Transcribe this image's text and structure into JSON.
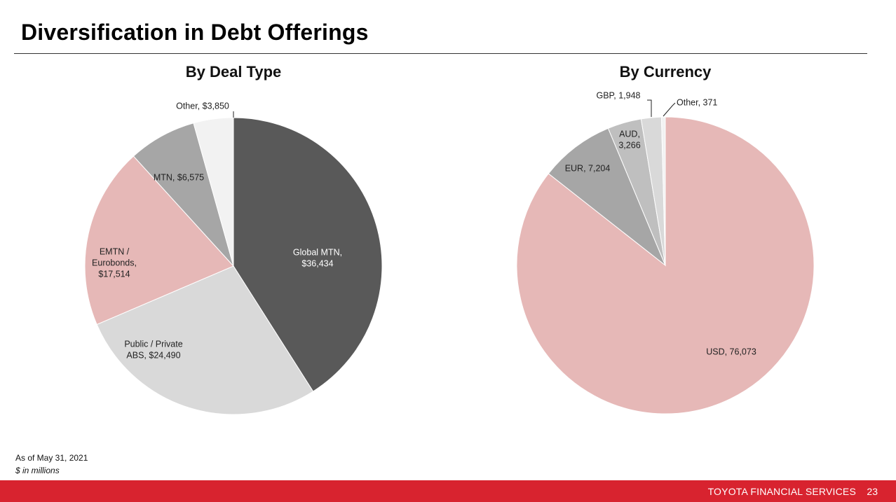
{
  "page": {
    "title": "Diversification in Debt Offerings",
    "footnote_date": "As of May 31, 2021",
    "footnote_units": "$ in millions",
    "footer_brand": "TOYOTA FINANCIAL SERVICES",
    "page_number": "23"
  },
  "colors": {
    "accent": "#d8232f",
    "global_mtn": "#595959",
    "public_private_abs": "#d9d9d9",
    "emtn": "#e6b8b7",
    "mtn": "#a6a6a6",
    "other_light": "#f2f2f2",
    "usd": "#e6b8b7",
    "eur": "#a6a6a6",
    "aud": "#bfbfbf",
    "gbp": "#d9d9d9"
  },
  "chart_data": [
    {
      "type": "pie",
      "title": "By Deal Type",
      "categories": [
        "Global MTN",
        "Public / Private ABS",
        "EMTN / Eurobonds",
        "MTN",
        "Other"
      ],
      "values": [
        36434,
        24490,
        17514,
        6575,
        3850
      ],
      "labels": [
        [
          "Global MTN,",
          "$36,434"
        ],
        [
          "Public / Private",
          "ABS,  $24,490"
        ],
        [
          "EMTN /",
          "Eurobonds,",
          "$17,514"
        ],
        [
          "MTN,  $6,575"
        ],
        [
          "Other,  $3,850"
        ]
      ],
      "colors": [
        "#595959",
        "#d9d9d9",
        "#e6b8b7",
        "#a6a6a6",
        "#f2f2f2"
      ],
      "label_colors": [
        "#ffffff",
        "#222222",
        "#222222",
        "#222222",
        "#222222"
      ],
      "start": "12 o'clock",
      "direction": "clockwise"
    },
    {
      "type": "pie",
      "title": "By Currency",
      "categories": [
        "USD",
        "EUR",
        "AUD",
        "GBP",
        "Other"
      ],
      "values": [
        76073,
        7204,
        3266,
        1948,
        371
      ],
      "labels": [
        [
          "USD,  76,073"
        ],
        [
          "EUR,  7,204"
        ],
        [
          "AUD,",
          "3,266"
        ],
        [
          "GBP,  1,948"
        ],
        [
          "Other,  371"
        ]
      ],
      "colors": [
        "#e6b8b7",
        "#a6a6a6",
        "#bfbfbf",
        "#d9d9d9",
        "#f2f2f2"
      ],
      "label_colors": [
        "#222222",
        "#222222",
        "#222222",
        "#222222",
        "#222222"
      ],
      "start": "12 o'clock",
      "direction": "clockwise"
    }
  ]
}
